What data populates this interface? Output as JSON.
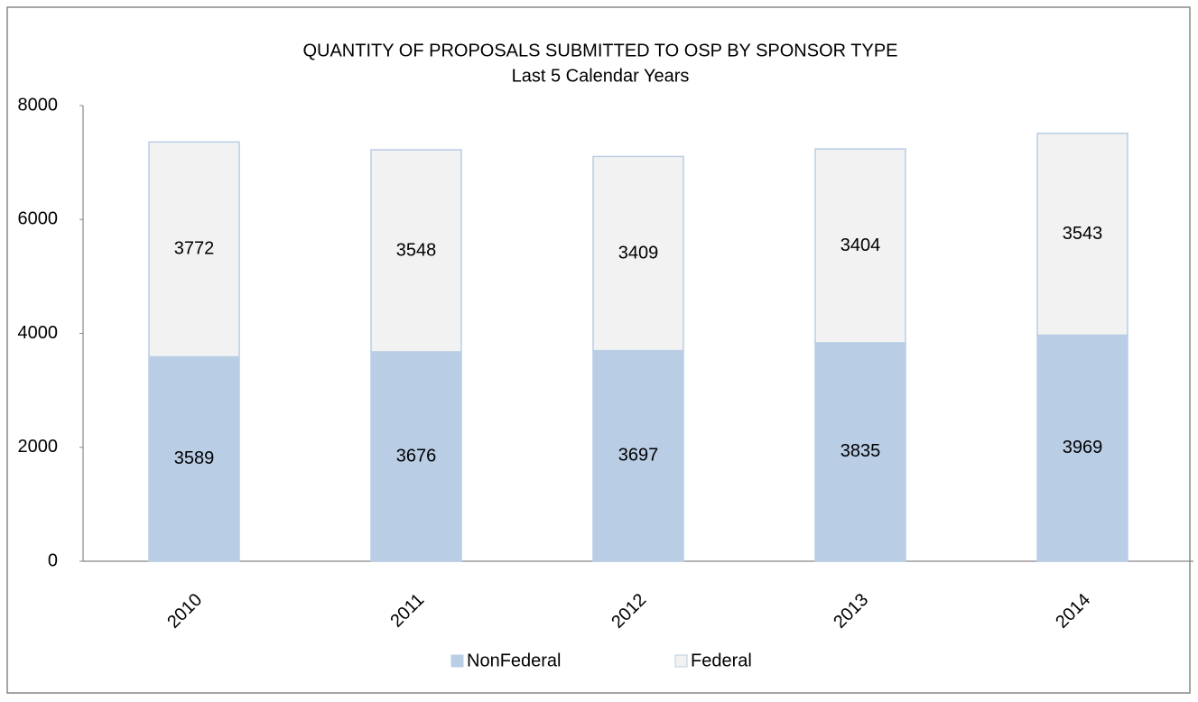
{
  "chart_data": {
    "type": "stacked_bar",
    "title": "QUANTITY OF PROPOSALS SUBMITTED TO OSP BY SPONSOR TYPE",
    "subtitle": "Last 5 Calendar Years",
    "categories": [
      "2010",
      "2011",
      "2012",
      "2013",
      "2014"
    ],
    "series": [
      {
        "name": "NonFederal",
        "color": "#b9cde5",
        "values": [
          3589,
          3676,
          3697,
          3835,
          3969
        ]
      },
      {
        "name": "Federal",
        "color": "#f2f2f2",
        "values": [
          3772,
          3548,
          3409,
          3404,
          3543
        ]
      }
    ],
    "ylim": [
      0,
      8000
    ],
    "yticks": [
      0,
      2000,
      4000,
      6000,
      8000
    ],
    "grid": false,
    "legend": "bottom"
  }
}
